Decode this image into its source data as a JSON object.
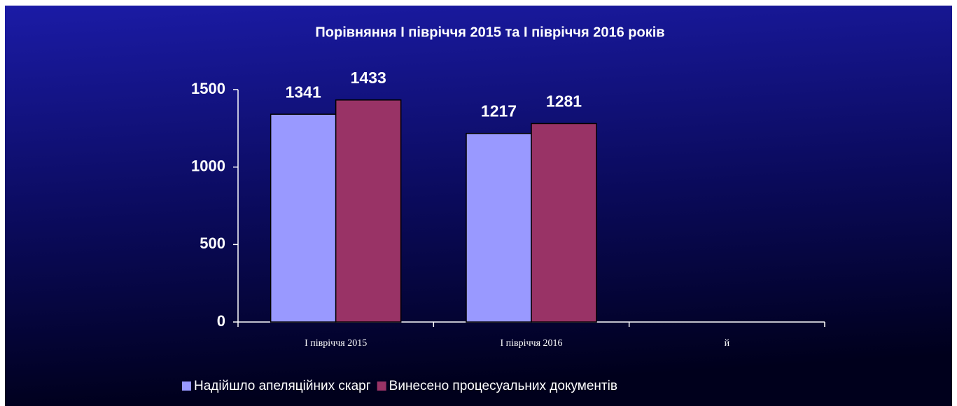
{
  "chart_data": {
    "type": "bar",
    "title": "Порівняння  I півріччя 2015 та I півріччя 2016 років",
    "categories": [
      "I півріччя 2015",
      "I півріччя 2016",
      "й"
    ],
    "series": [
      {
        "name": "Надійшло апеляційних скарг",
        "color": "#9999ff",
        "values": [
          1341,
          1217,
          null
        ]
      },
      {
        "name": "Винесено процесуальних документів",
        "color": "#993366",
        "values": [
          1433,
          1281,
          null
        ]
      }
    ],
    "ylim": [
      0,
      1500
    ],
    "yticks": [
      0,
      500,
      1000,
      1500
    ],
    "legend": "bottom"
  }
}
